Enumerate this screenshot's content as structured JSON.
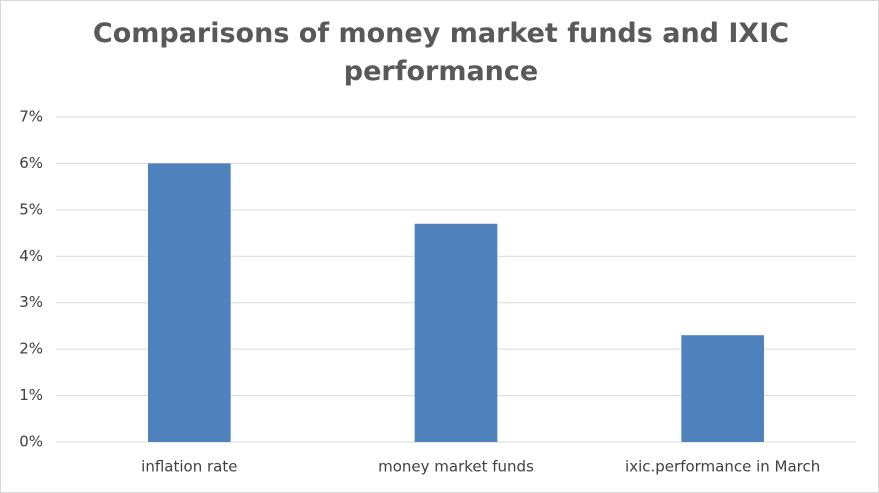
{
  "chart_data": {
    "type": "bar",
    "title": "Comparisons of money market funds and IXIC performance",
    "categories": [
      "inflation rate",
      "money market funds",
      "ixic.performance in March"
    ],
    "values": [
      6,
      4.7,
      2.3
    ],
    "color": "#4f81bd",
    "ylim": [
      0,
      7
    ],
    "yticks": [
      {
        "value": 0,
        "label": "0%"
      },
      {
        "value": 1,
        "label": "1%"
      },
      {
        "value": 2,
        "label": "2%"
      },
      {
        "value": 3,
        "label": "3%"
      },
      {
        "value": 4,
        "label": "4%"
      },
      {
        "value": 5,
        "label": "5%"
      },
      {
        "value": 6,
        "label": "6%"
      },
      {
        "value": 7,
        "label": "7%"
      }
    ],
    "grid": true
  }
}
